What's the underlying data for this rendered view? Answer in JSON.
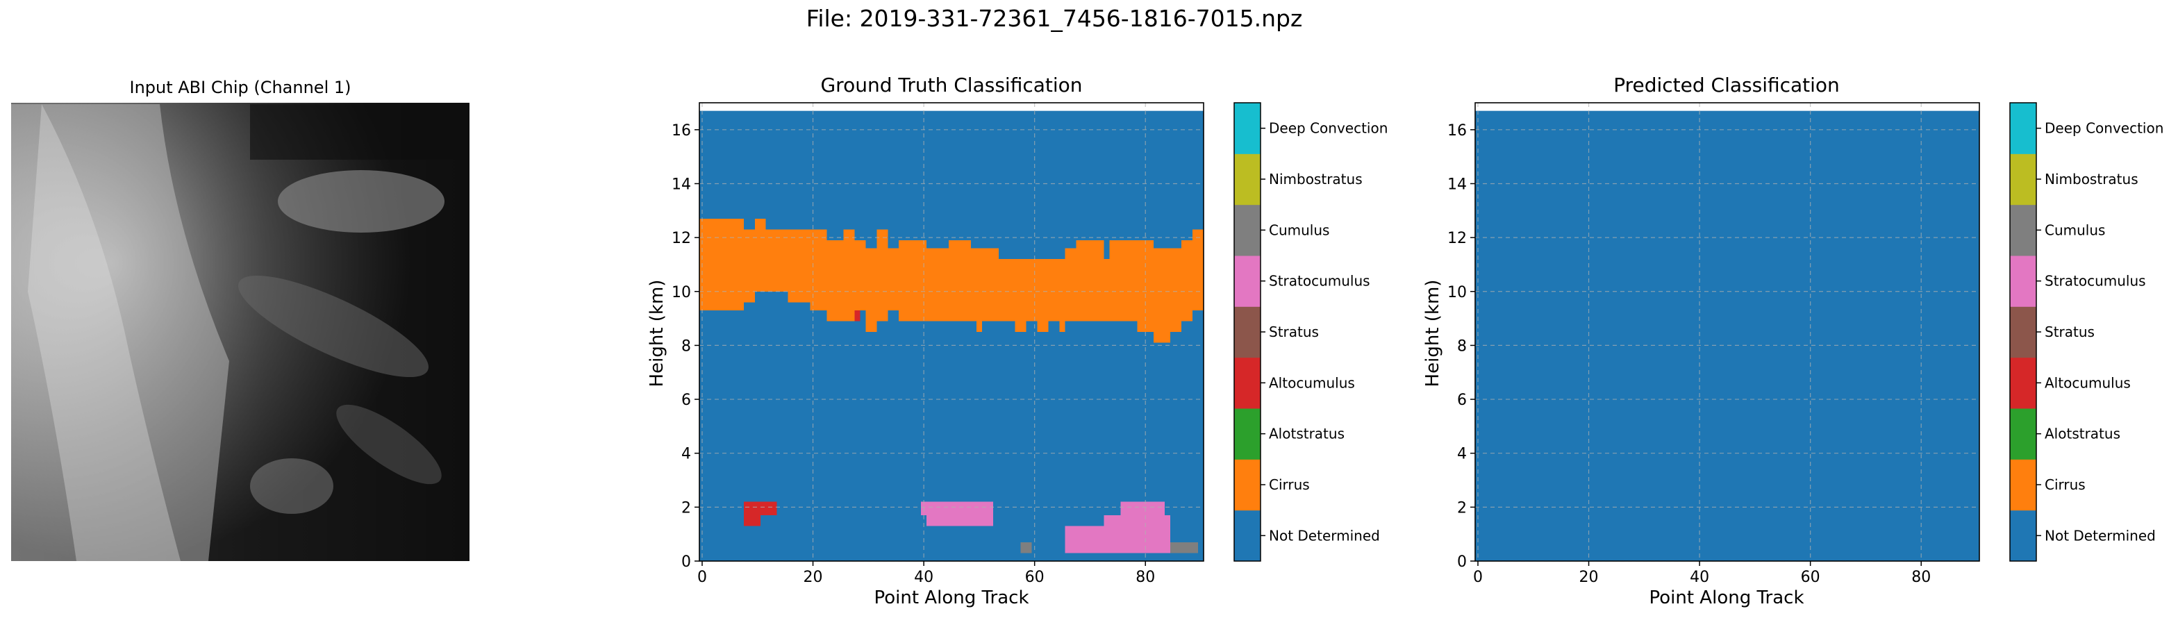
{
  "figure": {
    "suptitle": "File: 2019-331-72361_7456-1816-7015.npz"
  },
  "chip": {
    "title": "Input ABI Chip (Channel 1)"
  },
  "colors": {
    "Not Determined": "#1f77b4",
    "Cirrus": "#ff7f0e",
    "Alotstratus": "#2ca02c",
    "Altocumulus": "#d62728",
    "Stratus": "#8c564b",
    "Stratocumulus": "#e377c2",
    "Cumulus": "#7f7f7f",
    "Nimbostratus": "#bcbd22",
    "Deep Convection": "#17becf"
  },
  "chart_data": [
    {
      "type": "heatmap",
      "title": "Ground Truth Classification",
      "xlabel": "Point Along Track",
      "ylabel": "Height (km)",
      "xlim": [
        -0.5,
        90.5
      ],
      "ylim": [
        0,
        17
      ],
      "xticks": [
        0,
        20,
        40,
        60,
        80
      ],
      "yticks": [
        0,
        2,
        4,
        6,
        8,
        10,
        12,
        14,
        16
      ],
      "grid": true,
      "background_class": "Not Determined",
      "regions": [
        {
          "class": "Cirrus",
          "x0": -0.5,
          "x1": 7.5,
          "y0": 9.3,
          "y1": 12.7
        },
        {
          "class": "Cirrus",
          "x0": 7.5,
          "x1": 9.5,
          "y0": 9.6,
          "y1": 12.3
        },
        {
          "class": "Cirrus",
          "x0": 9.5,
          "x1": 11.5,
          "y0": 10.0,
          "y1": 12.7
        },
        {
          "class": "Cirrus",
          "x0": 11.5,
          "x1": 15.5,
          "y0": 10.0,
          "y1": 12.3
        },
        {
          "class": "Cirrus",
          "x0": 15.5,
          "x1": 19.5,
          "y0": 9.6,
          "y1": 12.3
        },
        {
          "class": "Cirrus",
          "x0": 19.5,
          "x1": 22.5,
          "y0": 9.3,
          "y1": 12.3
        },
        {
          "class": "Cirrus",
          "x0": 22.5,
          "x1": 25.5,
          "y0": 8.9,
          "y1": 11.9
        },
        {
          "class": "Cirrus",
          "x0": 25.5,
          "x1": 27.5,
          "y0": 8.9,
          "y1": 12.3
        },
        {
          "class": "Cirrus",
          "x0": 27.5,
          "x1": 29.5,
          "y0": 9.3,
          "y1": 11.9
        },
        {
          "class": "Cirrus",
          "x0": 29.5,
          "x1": 31.5,
          "y0": 8.5,
          "y1": 11.6
        },
        {
          "class": "Cirrus",
          "x0": 31.5,
          "x1": 33.5,
          "y0": 8.9,
          "y1": 12.3
        },
        {
          "class": "Cirrus",
          "x0": 33.5,
          "x1": 35.5,
          "y0": 9.3,
          "y1": 11.6
        },
        {
          "class": "Cirrus",
          "x0": 35.5,
          "x1": 40.5,
          "y0": 8.9,
          "y1": 11.9
        },
        {
          "class": "Cirrus",
          "x0": 40.5,
          "x1": 44.5,
          "y0": 8.9,
          "y1": 11.6
        },
        {
          "class": "Cirrus",
          "x0": 44.5,
          "x1": 48.5,
          "y0": 8.9,
          "y1": 11.9
        },
        {
          "class": "Cirrus",
          "x0": 48.5,
          "x1": 49.5,
          "y0": 8.9,
          "y1": 11.6
        },
        {
          "class": "Cirrus",
          "x0": 49.5,
          "x1": 50.5,
          "y0": 8.5,
          "y1": 11.6
        },
        {
          "class": "Cirrus",
          "x0": 50.5,
          "x1": 53.5,
          "y0": 8.9,
          "y1": 11.6
        },
        {
          "class": "Cirrus",
          "x0": 53.5,
          "x1": 56.5,
          "y0": 8.9,
          "y1": 11.2
        },
        {
          "class": "Cirrus",
          "x0": 56.5,
          "x1": 58.5,
          "y0": 8.5,
          "y1": 11.2
        },
        {
          "class": "Cirrus",
          "x0": 58.5,
          "x1": 60.5,
          "y0": 8.9,
          "y1": 11.2
        },
        {
          "class": "Cirrus",
          "x0": 60.5,
          "x1": 62.5,
          "y0": 8.5,
          "y1": 11.2
        },
        {
          "class": "Cirrus",
          "x0": 62.5,
          "x1": 64.5,
          "y0": 8.9,
          "y1": 11.2
        },
        {
          "class": "Cirrus",
          "x0": 64.5,
          "x1": 65.5,
          "y0": 8.5,
          "y1": 11.2
        },
        {
          "class": "Cirrus",
          "x0": 65.5,
          "x1": 67.5,
          "y0": 8.9,
          "y1": 11.6
        },
        {
          "class": "Cirrus",
          "x0": 67.5,
          "x1": 72.5,
          "y0": 8.9,
          "y1": 11.9
        },
        {
          "class": "Cirrus",
          "x0": 72.5,
          "x1": 73.5,
          "y0": 8.9,
          "y1": 11.2
        },
        {
          "class": "Cirrus",
          "x0": 73.5,
          "x1": 78.5,
          "y0": 8.9,
          "y1": 11.9
        },
        {
          "class": "Cirrus",
          "x0": 78.5,
          "x1": 81.5,
          "y0": 8.5,
          "y1": 11.9
        },
        {
          "class": "Cirrus",
          "x0": 81.5,
          "x1": 84.5,
          "y0": 8.1,
          "y1": 11.6
        },
        {
          "class": "Cirrus",
          "x0": 84.5,
          "x1": 86.5,
          "y0": 8.5,
          "y1": 11.6
        },
        {
          "class": "Cirrus",
          "x0": 86.5,
          "x1": 88.5,
          "y0": 8.9,
          "y1": 11.9
        },
        {
          "class": "Cirrus",
          "x0": 88.5,
          "x1": 90.5,
          "y0": 9.3,
          "y1": 12.3
        },
        {
          "class": "Altocumulus",
          "x0": 27.5,
          "x1": 28.5,
          "y0": 8.9,
          "y1": 9.3
        },
        {
          "class": "Altocumulus",
          "x0": 7.5,
          "x1": 13.5,
          "y0": 1.7,
          "y1": 2.2
        },
        {
          "class": "Altocumulus",
          "x0": 7.5,
          "x1": 10.5,
          "y0": 1.3,
          "y1": 1.7
        },
        {
          "class": "Stratocumulus",
          "x0": 39.5,
          "x1": 52.5,
          "y0": 1.7,
          "y1": 2.2
        },
        {
          "class": "Stratocumulus",
          "x0": 40.5,
          "x1": 52.5,
          "y0": 1.3,
          "y1": 1.7
        },
        {
          "class": "Stratocumulus",
          "x0": 75.5,
          "x1": 83.5,
          "y0": 1.7,
          "y1": 2.2
        },
        {
          "class": "Stratocumulus",
          "x0": 72.5,
          "x1": 84.5,
          "y0": 1.3,
          "y1": 1.7
        },
        {
          "class": "Stratocumulus",
          "x0": 65.5,
          "x1": 84.5,
          "y0": 0.3,
          "y1": 1.3
        },
        {
          "class": "Cumulus",
          "x0": 57.5,
          "x1": 59.5,
          "y0": 0.3,
          "y1": 0.7
        },
        {
          "class": "Cumulus",
          "x0": 84.5,
          "x1": 89.5,
          "y0": 0.3,
          "y1": 0.7
        }
      ]
    },
    {
      "type": "heatmap",
      "title": "Predicted Classification",
      "xlabel": "Point Along Track",
      "ylabel": "Height (km)",
      "xlim": [
        -0.5,
        90.5
      ],
      "ylim": [
        0,
        17
      ],
      "xticks": [
        0,
        20,
        40,
        60,
        80
      ],
      "yticks": [
        0,
        2,
        4,
        6,
        8,
        10,
        12,
        14,
        16
      ],
      "grid": true,
      "background_class": "Not Determined",
      "regions": []
    }
  ],
  "colorbar": {
    "classes": [
      "Not Determined",
      "Cirrus",
      "Alotstratus",
      "Altocumulus",
      "Stratus",
      "Stratocumulus",
      "Cumulus",
      "Nimbostratus",
      "Deep Convection"
    ]
  }
}
